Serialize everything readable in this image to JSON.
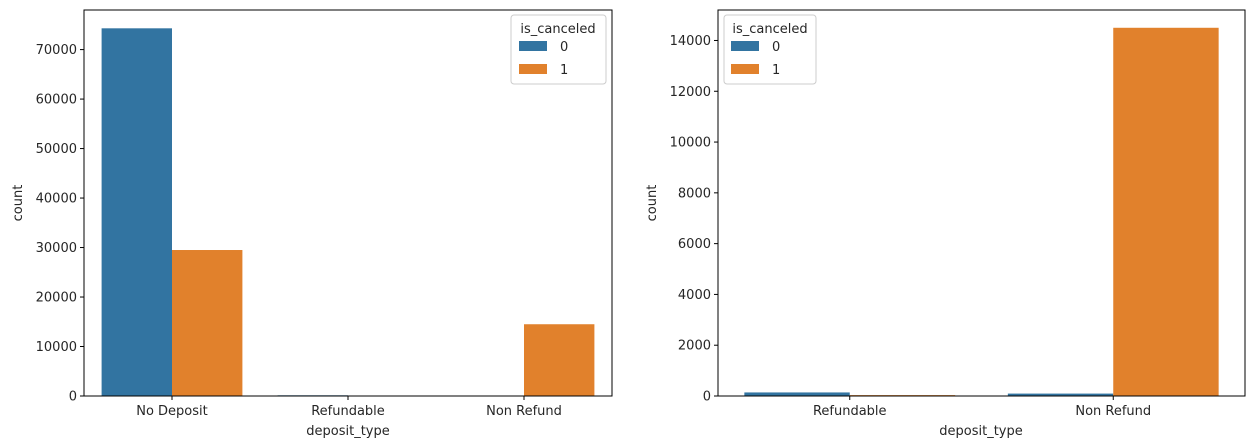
{
  "chart_data": [
    {
      "type": "bar",
      "xlabel": "deposit_type",
      "ylabel": "count",
      "categories": [
        "No Deposit",
        "Refundable",
        "Non Refund"
      ],
      "ylim": [
        0,
        78000
      ],
      "yticks": [
        0,
        10000,
        20000,
        30000,
        40000,
        50000,
        60000,
        70000
      ],
      "legend": {
        "title": "is_canceled",
        "position": "top-right"
      },
      "series": [
        {
          "name": "0",
          "color": "#3274a1",
          "values": [
            74300,
            140,
            95
          ]
        },
        {
          "name": "1",
          "color": "#e1812c",
          "values": [
            29500,
            35,
            14500
          ]
        }
      ]
    },
    {
      "type": "bar",
      "xlabel": "deposit_type",
      "ylabel": "count",
      "categories": [
        "Refundable",
        "Non Refund"
      ],
      "ylim": [
        0,
        15200
      ],
      "yticks": [
        0,
        2000,
        4000,
        6000,
        8000,
        10000,
        12000,
        14000
      ],
      "legend": {
        "title": "is_canceled",
        "position": "top-left"
      },
      "series": [
        {
          "name": "0",
          "color": "#3274a1",
          "values": [
            140,
            95
          ]
        },
        {
          "name": "1",
          "color": "#e1812c",
          "values": [
            35,
            14500
          ]
        }
      ]
    }
  ]
}
